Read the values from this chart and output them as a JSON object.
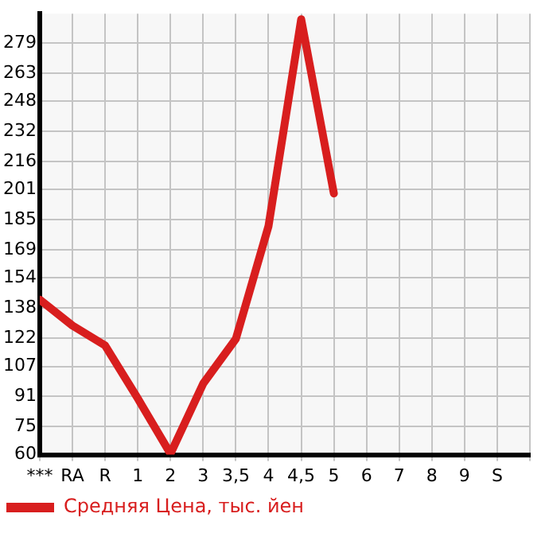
{
  "chart_data": {
    "type": "line",
    "categories": [
      "***",
      "RA",
      "R",
      "1",
      "2",
      "3",
      "3,5",
      "4",
      "4,5",
      "5",
      "6",
      "7",
      "8",
      "9",
      "S"
    ],
    "series": [
      {
        "name": "Средняя Цена, тыс. йен",
        "color": "#d81e1e",
        "values": [
          142.5,
          128.7,
          118.1,
          89.9,
          60.5,
          97.8,
          121.6,
          181.6,
          291.6,
          199,
          null,
          null,
          null,
          null,
          null
        ]
      }
    ],
    "ylim": [
      60,
      294.6
    ],
    "yticks": [
      60,
      75,
      91,
      107,
      122,
      138,
      154,
      169,
      185,
      201,
      216,
      232,
      248,
      263,
      279
    ],
    "grid": true,
    "legend": "bottom left",
    "marker": "none",
    "line_style": "solid"
  }
}
